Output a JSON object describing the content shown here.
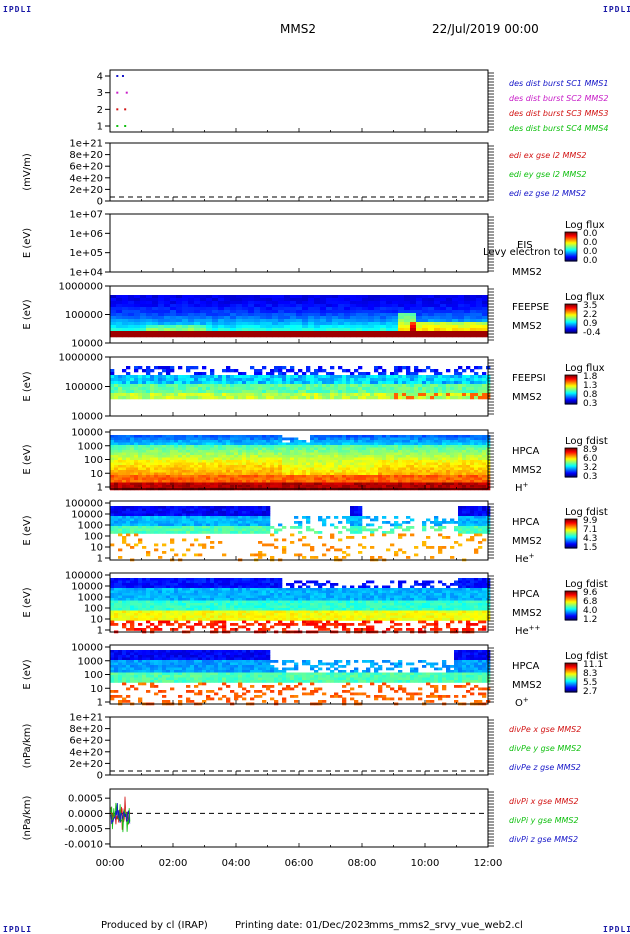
{
  "header": {
    "corner_label": "IPDLI",
    "spacecraft": "MMS2",
    "datetime": "22/Jul/2019 00:00"
  },
  "footer": {
    "produced_by": "Produced by cl (IRAP)",
    "printing_date": "Printing date: 01/Dec/2023",
    "script_name": "mms_mms2_srvy_vue_web2.cl"
  },
  "colors": {
    "mms1": "#1515c8",
    "mms2": "#c81ec8",
    "mms3": "#d21414",
    "mms4": "#10c010",
    "x": "#d21414",
    "y": "#10c010",
    "z": "#1515c8"
  },
  "chart_data": [
    {
      "type": "scatter",
      "ylabel": "",
      "ylim": [
        0.5,
        4.5
      ],
      "yticks": [
        "1",
        "2",
        "3",
        "4"
      ],
      "legend": [
        "des dist burst SC1 MMS1",
        "des dist burst SC2 MMS2",
        "des dist burst SC3 MMS3",
        "des dist burst SC4 MMS4"
      ],
      "series": [
        {
          "name": "des dist burst SC1 MMS1",
          "x": [
            0.2,
            0.38
          ],
          "y": [
            4,
            4
          ]
        },
        {
          "name": "des dist burst SC2 MMS2",
          "x": [
            0.2,
            0.5
          ],
          "y": [
            3,
            3
          ]
        },
        {
          "name": "des dist burst SC3 MMS3",
          "x": [
            0.2,
            0.45
          ],
          "y": [
            2,
            2
          ]
        },
        {
          "name": "des dist burst SC4 MMS4",
          "x": [
            0.2,
            0.45
          ],
          "y": [
            1,
            1
          ]
        }
      ]
    },
    {
      "type": "line",
      "ylabel": "(mV/m)",
      "yticks": [
        "1e+21",
        "8e+20",
        "6e+20",
        "4e+20",
        "2e+20",
        "0"
      ],
      "legend": [
        "edi ex gse l2 MMS2",
        "edi ey gse l2 MMS2",
        "edi ez gse l2 MMS2"
      ]
    },
    {
      "type": "heatmap",
      "ylabel": "E (eV)",
      "yticks": [
        "1e+07",
        "1e+06",
        "1e+05",
        "1e+04"
      ],
      "instrument": "EIS",
      "spacecraft": "MMS2",
      "overlay_text": "Levy electron to",
      "cbar_title": "Log flux",
      "cbar_ticks": [
        "0.0",
        "0.0",
        "0.0",
        "0.0"
      ]
    },
    {
      "type": "heatmap",
      "ylabel": "E (eV)",
      "yticks": [
        "1000000",
        "100000",
        "10000"
      ],
      "instrument": "FEEPSE",
      "spacecraft": "MMS2",
      "cbar_title": "Log flux",
      "cbar_ticks": [
        "3.5",
        "2.2",
        "0.9",
        "-0.4"
      ]
    },
    {
      "type": "heatmap",
      "ylabel": "E (eV)",
      "yticks": [
        "1000000",
        "100000",
        "10000"
      ],
      "instrument": "FEEPSI",
      "spacecraft": "MMS2",
      "cbar_title": "Log flux",
      "cbar_ticks": [
        "1.8",
        "1.3",
        "0.8",
        "0.3"
      ]
    },
    {
      "type": "heatmap",
      "ylabel": "E (eV)",
      "yticks": [
        "10000",
        "1000",
        "100",
        "10",
        "1"
      ],
      "instrument": "HPCA",
      "spacecraft": "MMS2",
      "species": "H",
      "species_charge": "+",
      "cbar_title": "Log fdist",
      "cbar_ticks": [
        "8.9",
        "6.0",
        "3.2",
        "0.3"
      ]
    },
    {
      "type": "heatmap",
      "ylabel": "E (eV)",
      "yticks": [
        "100000",
        "10000",
        "1000",
        "100",
        "10",
        "1"
      ],
      "instrument": "HPCA",
      "spacecraft": "MMS2",
      "species": "He",
      "species_charge": "+",
      "cbar_title": "Log fdist",
      "cbar_ticks": [
        "9.9",
        "7.1",
        "4.3",
        "1.5"
      ]
    },
    {
      "type": "heatmap",
      "ylabel": "E (eV)",
      "yticks": [
        "100000",
        "10000",
        "1000",
        "100",
        "10",
        "1"
      ],
      "instrument": "HPCA",
      "spacecraft": "MMS2",
      "species": "He",
      "species_charge": "++",
      "cbar_title": "Log fdist",
      "cbar_ticks": [
        "9.6",
        "6.8",
        "4.0",
        "1.2"
      ]
    },
    {
      "type": "heatmap",
      "ylabel": "E (eV)",
      "yticks": [
        "10000",
        "1000",
        "100",
        "10",
        "1"
      ],
      "instrument": "HPCA",
      "spacecraft": "MMS2",
      "species": "O",
      "species_charge": "+",
      "cbar_title": "Log fdist",
      "cbar_ticks": [
        "11.1",
        "8.3",
        "5.5",
        "2.7"
      ]
    },
    {
      "type": "line",
      "ylabel": "(nPa/km)",
      "yticks": [
        "1e+21",
        "8e+20",
        "6e+20",
        "4e+20",
        "2e+20",
        "0"
      ],
      "legend": [
        "divPe x gse MMS2",
        "divPe y gse MMS2",
        "divPe z gse MMS2"
      ]
    },
    {
      "type": "line",
      "ylabel": "(nPa/km)",
      "yticks": [
        "0.0005",
        "0.0000",
        "-0.0005",
        "-0.0010"
      ],
      "ylim": [
        -0.0011,
        0.0008
      ],
      "legend": [
        "divPi x gse MMS2",
        "divPi y gse MMS2",
        "divPi z gse MMS2"
      ],
      "xlim": [
        0,
        12
      ],
      "xticks": [
        "00:00",
        "02:00",
        "04:00",
        "06:00",
        "08:00",
        "10:00",
        "12:00"
      ]
    }
  ]
}
